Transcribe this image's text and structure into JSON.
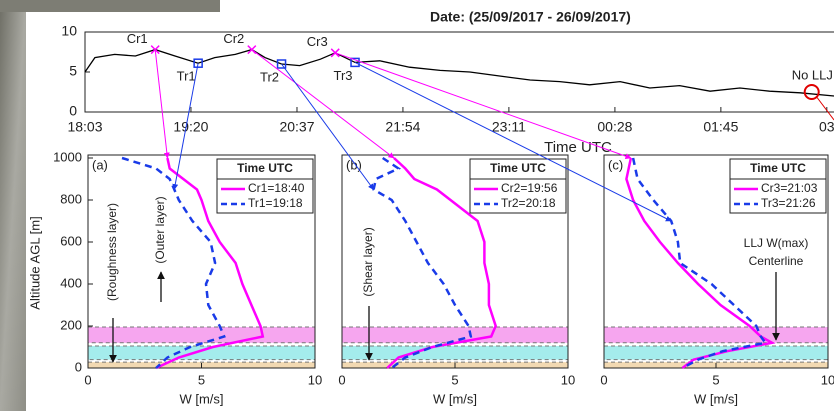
{
  "chart_data": [
    {
      "type": "line",
      "title": "Date: (25/09/2017 - 26/09/2017)",
      "x_label": "Time UTC",
      "x": [
        18.05,
        18.17,
        18.41,
        18.66,
        18.9,
        19.14,
        19.42,
        19.62,
        19.87,
        20.07,
        20.23,
        20.43,
        20.65,
        20.9,
        21.08,
        21.32,
        21.62,
        21.98,
        22.35,
        22.71,
        23.07,
        23.44,
        23.8,
        24.16,
        24.53,
        24.89,
        25.25,
        25.62,
        25.98,
        26.34,
        26.71,
        27.12
      ],
      "series": [
        {
          "color": "#000000",
          "values": [
            5.0,
            6.8,
            7.2,
            7.0,
            7.8,
            7.0,
            6.1,
            6.8,
            7.2,
            7.8,
            6.8,
            6.0,
            5.8,
            6.6,
            7.4,
            6.2,
            6.4,
            5.6,
            5.2,
            5.0,
            4.5,
            4.0,
            3.8,
            3.4,
            3.8,
            3.0,
            3.3,
            2.6,
            3.0,
            2.6,
            2.4,
            2.0
          ]
        }
      ],
      "markers": [
        {
          "label": "Cr1",
          "x": 18.9,
          "y": 7.8,
          "color": "#ff00ff",
          "shape": "x"
        },
        {
          "label": "Tr1",
          "x": 19.42,
          "y": 6.1,
          "color": "#1a3be8",
          "shape": "square"
        },
        {
          "label": "Cr2",
          "x": 20.07,
          "y": 7.8,
          "color": "#ff00ff",
          "shape": "x"
        },
        {
          "label": "Tr2",
          "x": 20.43,
          "y": 6.0,
          "color": "#1a3be8",
          "shape": "square"
        },
        {
          "label": "Cr3",
          "x": 21.08,
          "y": 7.4,
          "color": "#ff00ff",
          "shape": "x"
        },
        {
          "label": "Tr3",
          "x": 21.32,
          "y": 6.2,
          "color": "#1a3be8",
          "shape": "square"
        },
        {
          "label": "No LLJ",
          "x": 26.85,
          "y": 2.5,
          "color": "#e00000",
          "shape": "circle"
        }
      ],
      "xlim": [
        18.05,
        27.12
      ],
      "xticks": [
        {
          "value": 18.05,
          "label": "18:03"
        },
        {
          "value": 19.333,
          "label": "19:20"
        },
        {
          "value": 20.617,
          "label": "20:37"
        },
        {
          "value": 21.9,
          "label": "21:54"
        },
        {
          "value": 23.183,
          "label": "23:11"
        },
        {
          "value": 24.467,
          "label": "00:28"
        },
        {
          "value": 25.75,
          "label": "01:45"
        },
        {
          "value": 27.033,
          "label": "03"
        }
      ],
      "ylim": [
        0,
        10
      ],
      "yticks": [
        0,
        5,
        10
      ]
    },
    {
      "type": "profile",
      "panel_label": "(a)",
      "x_label": "W [m/s]",
      "y_label": "Altitude AGL [m]",
      "xlim": [
        0,
        10
      ],
      "xticks": [
        0,
        5,
        10
      ],
      "ylim": [
        0,
        1000
      ],
      "yticks": [
        0,
        200,
        400,
        600,
        800,
        1000
      ],
      "y": [
        1000,
        950,
        900,
        850,
        800,
        700,
        600,
        500,
        400,
        300,
        200,
        150,
        100,
        50,
        0
      ],
      "legend_title": "Time UTC",
      "legend": "upper right",
      "series": [
        {
          "name": "Cr1=18:40",
          "color": "#ff00ff",
          "dash": false,
          "values": [
            3.5,
            3.6,
            4.2,
            4.8,
            5.0,
            5.3,
            5.8,
            6.5,
            6.8,
            7.2,
            7.6,
            7.7,
            5.5,
            4.0,
            3.0
          ]
        },
        {
          "name": "Tr1=19:18",
          "color": "#1a3be8",
          "dash": true,
          "values": [
            1.5,
            3.0,
            3.6,
            3.8,
            4.0,
            4.6,
            5.4,
            5.6,
            5.2,
            5.3,
            5.8,
            6.0,
            4.5,
            3.5,
            3.0
          ]
        }
      ],
      "bands": [
        {
          "from": 120,
          "to": 195,
          "color": "#f6a6ef"
        },
        {
          "from": 40,
          "to": 105,
          "color": "#a4ecec"
        },
        {
          "from": 0,
          "to": 28,
          "color": "#f2d9b2"
        }
      ],
      "annotations": [
        "(Roughness layer)",
        "(Outer layer)"
      ]
    },
    {
      "type": "profile",
      "panel_label": "(b)",
      "x_label": "W [m/s]",
      "xlim": [
        0,
        10
      ],
      "xticks": [
        0,
        5,
        10
      ],
      "ylim": [
        0,
        1000
      ],
      "y": [
        1000,
        950,
        900,
        850,
        800,
        700,
        600,
        500,
        400,
        300,
        200,
        150,
        100,
        50,
        0
      ],
      "legend_title": "Time UTC",
      "legend": "upper right",
      "series": [
        {
          "name": "Cr2=19:56",
          "color": "#ff00ff",
          "dash": false,
          "values": [
            2.3,
            2.8,
            3.2,
            4.2,
            4.8,
            6.0,
            6.3,
            6.3,
            6.5,
            6.5,
            6.8,
            6.6,
            4.0,
            2.5,
            2.0
          ]
        },
        {
          "name": "Tr2=20:18",
          "color": "#1a3be8",
          "dash": true,
          "values": [
            1.8,
            2.5,
            1.5,
            1.4,
            2.2,
            2.8,
            3.3,
            3.8,
            4.5,
            5.0,
            5.6,
            5.7,
            4.0,
            2.8,
            2.2
          ]
        }
      ],
      "bands": [
        {
          "from": 120,
          "to": 195,
          "color": "#f6a6ef"
        },
        {
          "from": 40,
          "to": 105,
          "color": "#a4ecec"
        },
        {
          "from": 0,
          "to": 28,
          "color": "#f2d9b2"
        }
      ],
      "annotations": [
        "(Shear layer)"
      ]
    },
    {
      "type": "profile",
      "panel_label": "(c)",
      "x_label": "W [m/s]",
      "xlim": [
        0,
        10
      ],
      "xticks": [
        0,
        5,
        10
      ],
      "ylim": [
        0,
        1000
      ],
      "y": [
        1000,
        900,
        800,
        700,
        600,
        500,
        400,
        300,
        200,
        150,
        120,
        80,
        40,
        0
      ],
      "legend_title": "Time UTC",
      "legend": "upper right",
      "series": [
        {
          "name": "Cr3=21:03",
          "color": "#ff00ff",
          "dash": false,
          "values": [
            1.2,
            1.0,
            1.3,
            1.8,
            2.5,
            3.3,
            4.2,
            5.2,
            6.5,
            7.0,
            7.5,
            5.5,
            4.0,
            3.5
          ]
        },
        {
          "name": "Tr3=21:26",
          "color": "#1a3be8",
          "dash": true,
          "values": [
            1.3,
            1.5,
            2.2,
            3.0,
            3.3,
            3.4,
            4.8,
            5.8,
            6.8,
            7.0,
            7.2,
            5.3,
            4.2,
            3.5
          ]
        }
      ],
      "bands": [
        {
          "from": 120,
          "to": 195,
          "color": "#f6a6ef"
        },
        {
          "from": 40,
          "to": 105,
          "color": "#a4ecec"
        },
        {
          "from": 0,
          "to": 28,
          "color": "#f2d9b2"
        }
      ],
      "annotations": [
        "LLJ W(max)",
        "Centerline"
      ]
    }
  ]
}
